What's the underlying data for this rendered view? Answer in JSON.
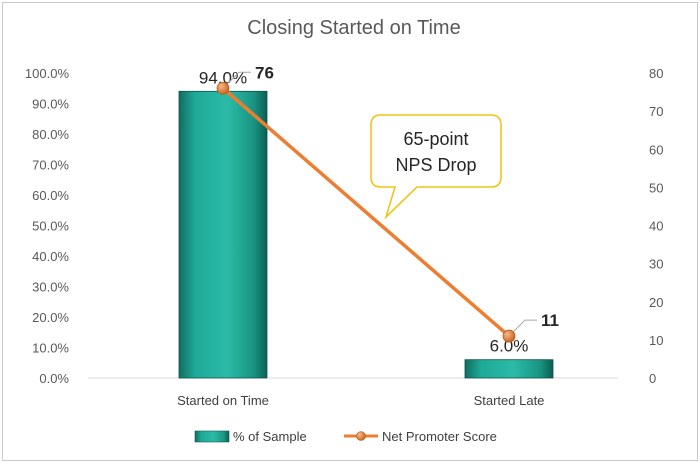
{
  "chart_data": {
    "type": "bar",
    "title": "Closing Started on Time",
    "categories": [
      "Started on Time",
      "Started Late"
    ],
    "series": [
      {
        "name": "% of Sample",
        "type": "bar",
        "axis": "left",
        "values": [
          94.0,
          6.0
        ],
        "labels": [
          "94.0%",
          "6.0%"
        ],
        "color": "#1a9c8c"
      },
      {
        "name": "Net Promoter Score",
        "type": "line",
        "axis": "right",
        "values": [
          76,
          11
        ],
        "labels": [
          "76",
          "11"
        ],
        "color": "#ed7d31"
      }
    ],
    "y_left": {
      "min": 0,
      "max": 100,
      "step": 10,
      "ticks": [
        "0.0%",
        "10.0%",
        "20.0%",
        "30.0%",
        "40.0%",
        "50.0%",
        "60.0%",
        "70.0%",
        "80.0%",
        "90.0%",
        "100.0%"
      ]
    },
    "y_right": {
      "min": 0,
      "max": 80,
      "step": 10,
      "ticks": [
        "0",
        "10",
        "20",
        "30",
        "40",
        "50",
        "60",
        "70",
        "80"
      ]
    },
    "annotation": {
      "line1": "65-point",
      "line2": "NPS Drop"
    },
    "legend": {
      "position": "bottom"
    },
    "grid": false
  }
}
